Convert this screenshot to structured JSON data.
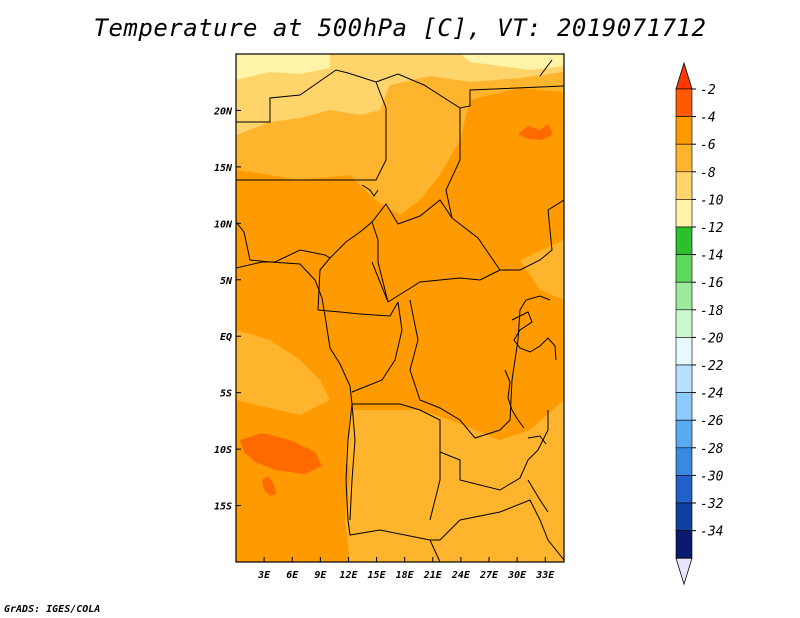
{
  "title": "Temperature at 500hPa [C], VT: 2019071712",
  "credit": "GrADS: IGES/COLA",
  "map": {
    "lon_range": [
      0,
      35
    ],
    "lat_range": [
      -20,
      25
    ],
    "x_ticks": [
      {
        "lon": 3,
        "label": "3E"
      },
      {
        "lon": 6,
        "label": "6E"
      },
      {
        "lon": 9,
        "label": "9E"
      },
      {
        "lon": 12,
        "label": "12E"
      },
      {
        "lon": 15,
        "label": "15E"
      },
      {
        "lon": 18,
        "label": "18E"
      },
      {
        "lon": 21,
        "label": "21E"
      },
      {
        "lon": 24,
        "label": "24E"
      },
      {
        "lon": 27,
        "label": "27E"
      },
      {
        "lon": 30,
        "label": "30E"
      },
      {
        "lon": 33,
        "label": "33E"
      }
    ],
    "y_ticks": [
      {
        "lat": 20,
        "label": "20N"
      },
      {
        "lat": 15,
        "label": "15N"
      },
      {
        "lat": 10,
        "label": "10N"
      },
      {
        "lat": 5,
        "label": "5N"
      },
      {
        "lat": 0,
        "label": "EQ"
      },
      {
        "lat": -5,
        "label": "5S"
      },
      {
        "lat": -10,
        "label": "10S"
      },
      {
        "lat": -15,
        "label": "15S"
      }
    ]
  },
  "colorbar": {
    "levels": [
      "-2",
      "-4",
      "-6",
      "-8",
      "-10",
      "-12",
      "-14",
      "-16",
      "-18",
      "-20",
      "-22",
      "-24",
      "-26",
      "-28",
      "-30",
      "-32",
      "-34"
    ],
    "colors": [
      "#ff5a00",
      "#ff9b00",
      "#ffb42d",
      "#ffd46a",
      "#fff3a8",
      "#2ebf2e",
      "#5ed95e",
      "#9ceb9c",
      "#ccf7cc",
      "#e8f8ff",
      "#b8e0ff",
      "#8ccaff",
      "#5aaaf0",
      "#3a88e0",
      "#2060c8",
      "#1040a0",
      "#0a1a6e"
    ],
    "top_arrow_color": "#ff3a00",
    "bottom_arrow_color": "#e6e6ff"
  }
}
